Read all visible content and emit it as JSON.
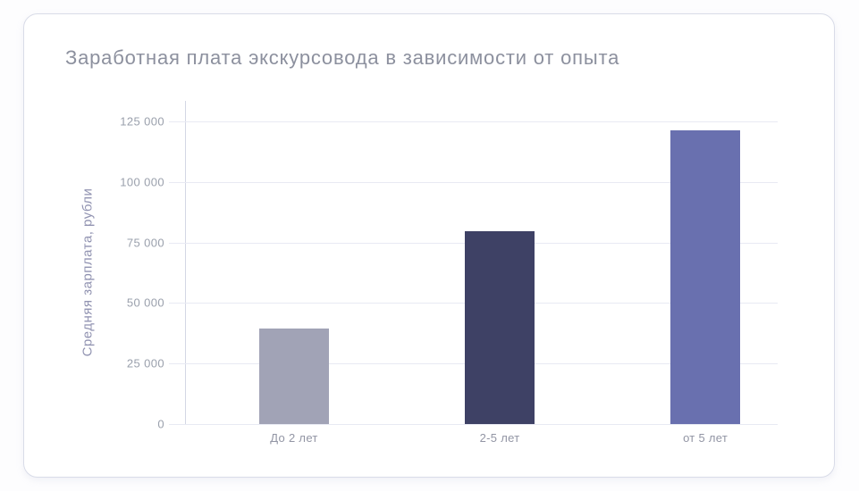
{
  "card": {
    "title": "Заработная плата экскурсовода в зависимости от опыта"
  },
  "chart_data": {
    "type": "bar",
    "title": "Заработная плата экскурсовода в зависимости от опыта",
    "categories": [
      "До 2 лет",
      "2-5 лет",
      "от 5 лет"
    ],
    "values": [
      39500,
      79500,
      121500
    ],
    "bar_colors": [
      "#a1a3b6",
      "#3e4165",
      "#6970af"
    ],
    "xlabel": "",
    "ylabel": "Средняя зарплата, рубли",
    "ylim": [
      0,
      125000
    ],
    "ytick_step": 25000,
    "ytick_labels": [
      "0",
      "25 000",
      "50 000",
      "75 000",
      "100 000",
      "125 000"
    ],
    "grid": true,
    "legend": false
  },
  "colors": {
    "card_background": "#ffffff",
    "card_border": "#d9dce8",
    "gridline": "#e8eaf3",
    "axis_line": "#d4d7e4",
    "title_text": "#8c909e",
    "tick_text": "#9aa0ac",
    "ylabel_text": "#9193b1"
  }
}
